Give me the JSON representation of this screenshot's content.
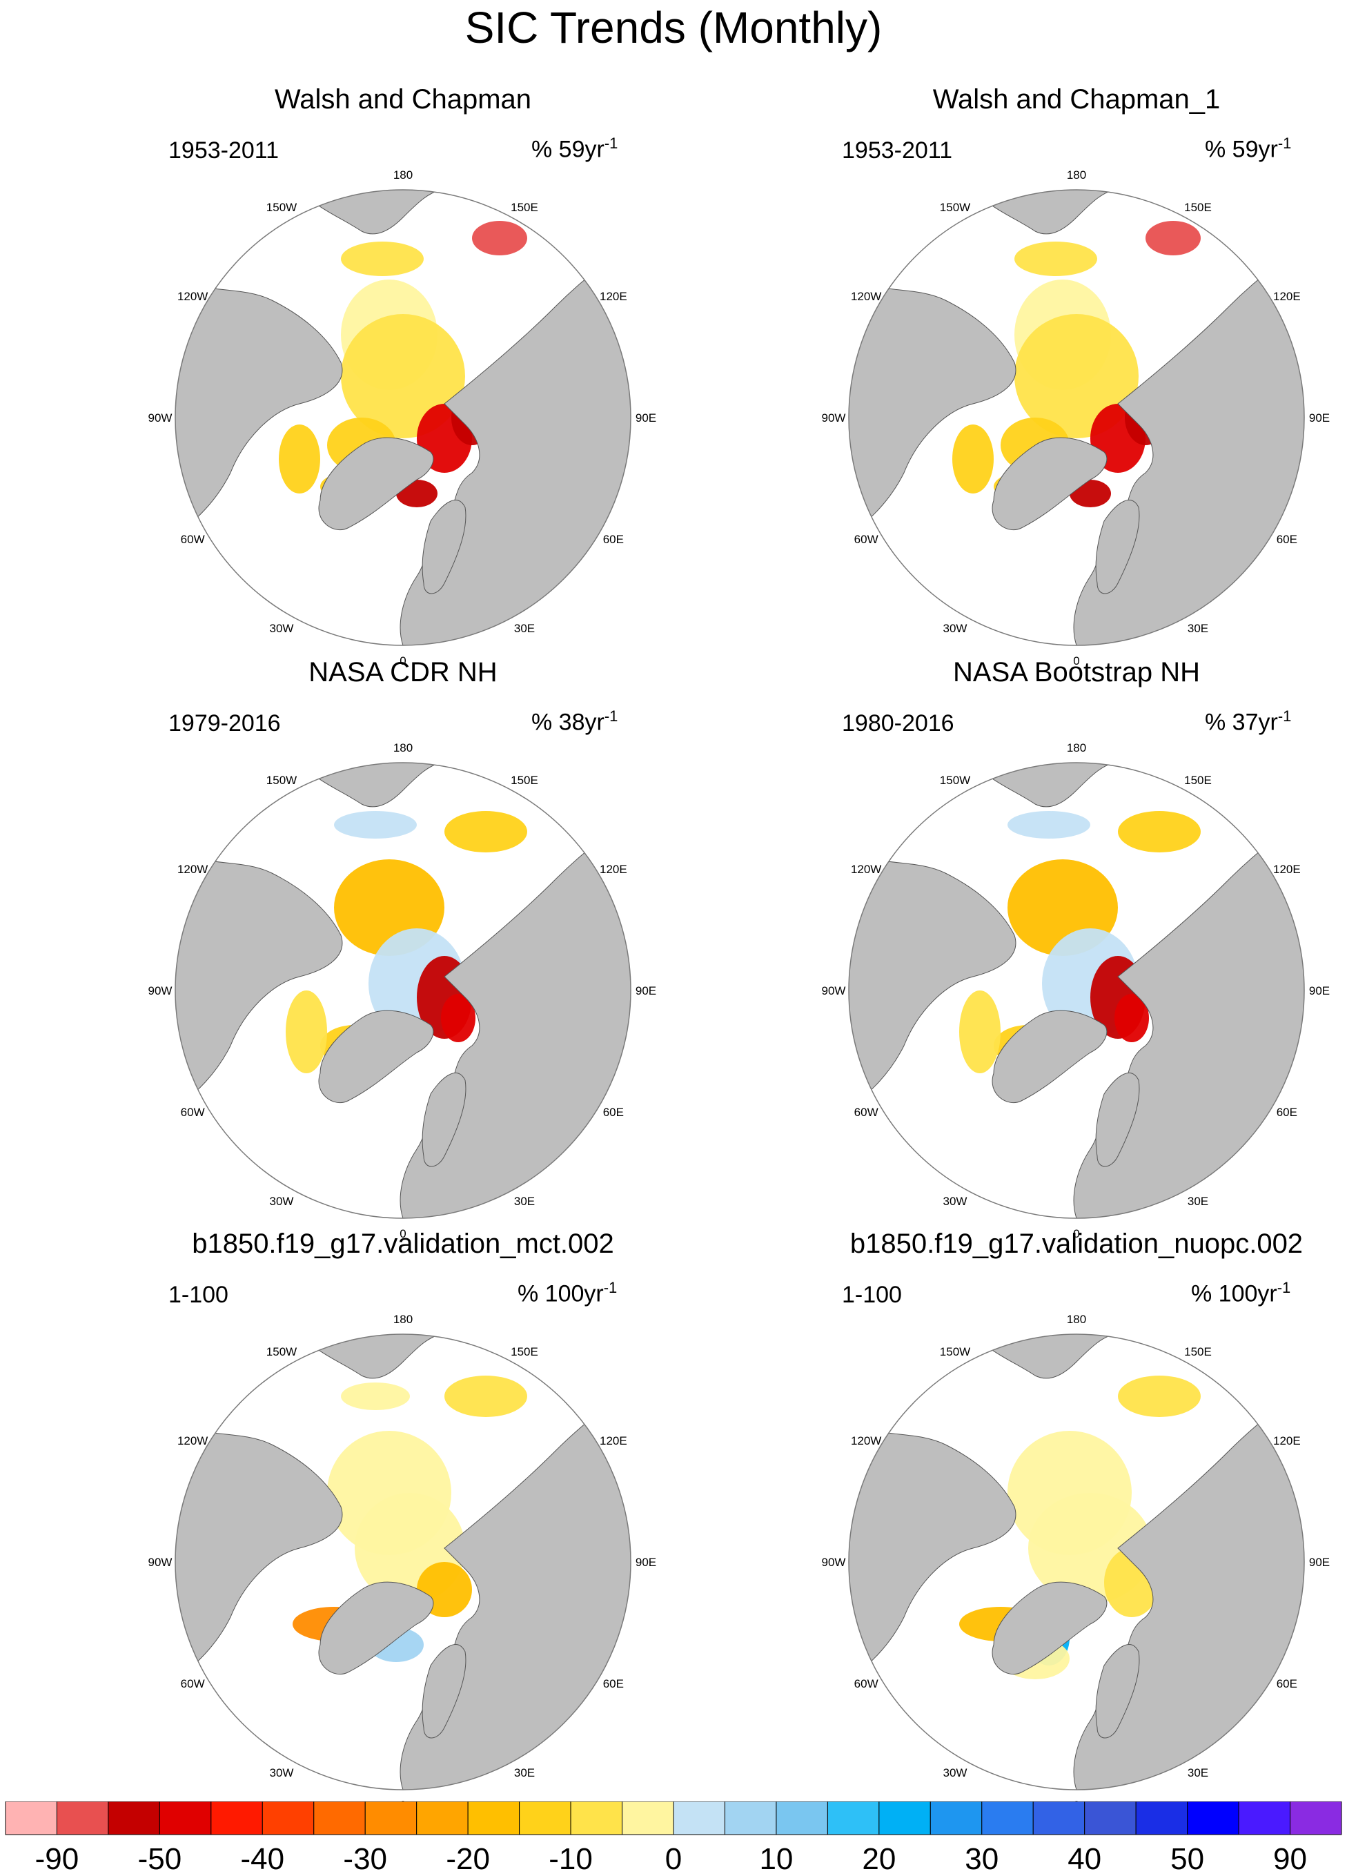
{
  "title": "SIC Trends (Monthly)",
  "colors": {
    "land": "#bebebe",
    "ocean": "#ffffff",
    "outline": "#7a7a7a"
  },
  "longitude_labels": [
    "180",
    "150E",
    "120E",
    "90E",
    "60E",
    "30E",
    "0",
    "30W",
    "60W",
    "90W",
    "120W",
    "150W"
  ],
  "panels": [
    {
      "title": "Walsh and Chapman",
      "period": "1953-2011",
      "units": "% 59yr",
      "units_exp": "-1",
      "pattern": "wc"
    },
    {
      "title": "Walsh and Chapman_1",
      "period": "1953-2011",
      "units": "% 59yr",
      "units_exp": "-1",
      "pattern": "wc"
    },
    {
      "title": "NASA CDR NH",
      "period": "1979-2016",
      "units": "% 38yr",
      "units_exp": "-1",
      "pattern": "sat"
    },
    {
      "title": "NASA Bootstrap NH",
      "period": "1980-2016",
      "units": "% 37yr",
      "units_exp": "-1",
      "pattern": "sat"
    },
    {
      "title": "b1850.f19_g17.validation_mct.002",
      "period": "1-100",
      "units": "% 100yr",
      "units_exp": "-1",
      "pattern": "mod"
    },
    {
      "title": "b1850.f19_g17.validation_nuopc.002",
      "period": "1-100",
      "units": "% 100yr",
      "units_exp": "-1",
      "pattern": "mod2"
    }
  ],
  "colorbar": {
    "labels": [
      "-90",
      "-50",
      "-40",
      "-30",
      "-20",
      "-10",
      "0",
      "10",
      "20",
      "30",
      "40",
      "50",
      "90"
    ],
    "colors": [
      "#ffb3b3",
      "#e85050",
      "#c40000",
      "#e00000",
      "#ff1a00",
      "#ff4000",
      "#ff6a00",
      "#ff8c00",
      "#ffa500",
      "#ffbf00",
      "#ffd21a",
      "#ffe34a",
      "#fff5a0",
      "#c4e2f5",
      "#a2d4f2",
      "#7ac6f0",
      "#2ec0f7",
      "#00b0f5",
      "#1e96f0",
      "#2a7cf0",
      "#3262e6",
      "#3a55d6",
      "#1a2ee6",
      "#0000ff",
      "#4a1aff",
      "#8a2be2"
    ]
  }
}
